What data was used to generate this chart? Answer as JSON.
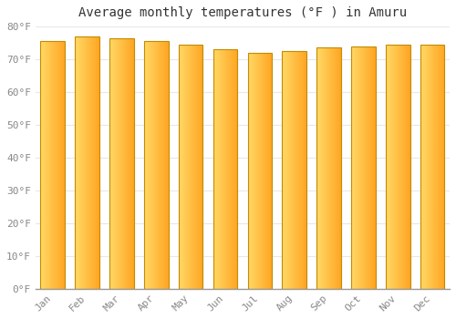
{
  "title": "Average monthly temperatures (°F ) in Amuru",
  "months": [
    "Jan",
    "Feb",
    "Mar",
    "Apr",
    "May",
    "Jun",
    "Jul",
    "Aug",
    "Sep",
    "Oct",
    "Nov",
    "Dec"
  ],
  "values": [
    75.5,
    77.0,
    76.5,
    75.5,
    74.5,
    73.0,
    72.0,
    72.5,
    73.5,
    74.0,
    74.5,
    74.5
  ],
  "ylim": [
    0,
    80
  ],
  "yticks": [
    0,
    10,
    20,
    30,
    40,
    50,
    60,
    70,
    80
  ],
  "bar_color_left": "#FFD966",
  "bar_color_right": "#F5A623",
  "bar_edge_color": "#C68A00",
  "background_color": "#ffffff",
  "grid_color": "#e8e8e8",
  "title_fontsize": 10,
  "tick_fontsize": 8,
  "figsize": [
    5.0,
    3.5
  ],
  "dpi": 100
}
